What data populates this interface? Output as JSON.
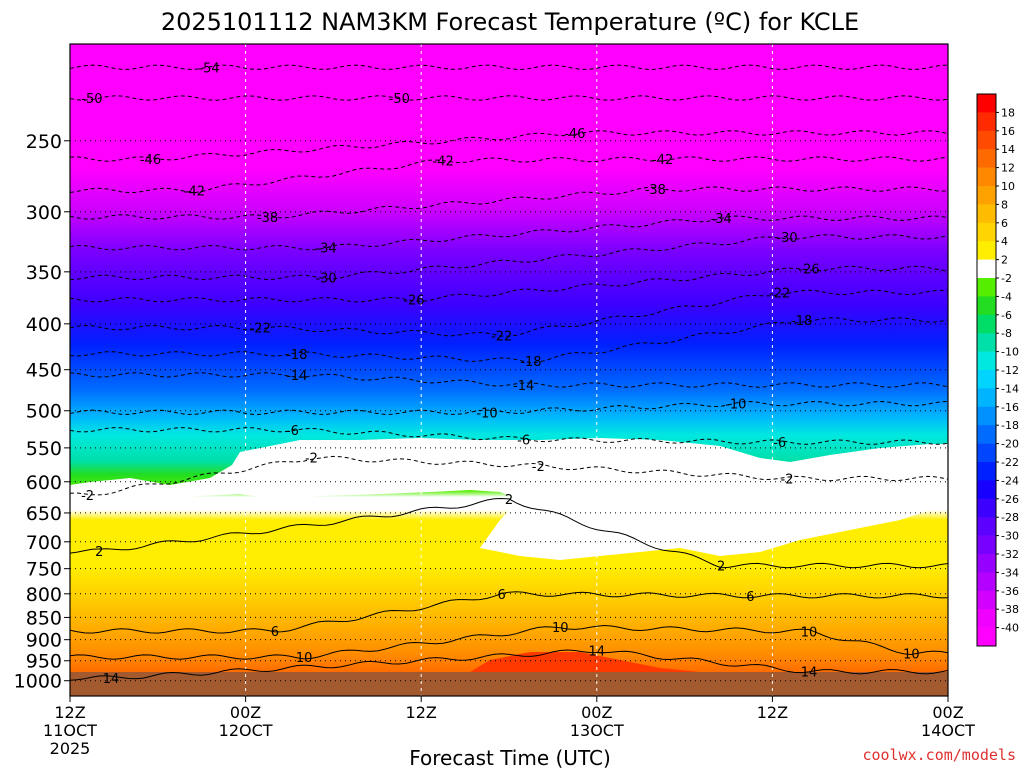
{
  "chart_data": {
    "type": "heatmap",
    "title": "2025101112 NAM3KM Forecast Temperature (ºC) for KCLE",
    "xlabel": "Forecast Time (UTC)",
    "ylabel": "",
    "credit": "coolwx.com/models",
    "y_log_scale": true,
    "y_reversed": true,
    "ylim": [
      1040,
      195
    ],
    "y_ticks": [
      250,
      300,
      350,
      400,
      450,
      500,
      550,
      600,
      650,
      700,
      750,
      800,
      850,
      900,
      950,
      1000
    ],
    "y_tick_labels": [
      "250",
      "300",
      "350",
      "400",
      "450",
      "500",
      "550",
      "600",
      "650",
      "700",
      "750",
      "800",
      "850",
      "900",
      "950",
      "1000"
    ],
    "x_ticks": [
      {
        "top": "12Z",
        "bottom": "11OCT",
        "extra": "2025"
      },
      {
        "top": "00Z",
        "bottom": "12OCT",
        "extra": ""
      },
      {
        "top": "12Z",
        "bottom": "",
        "extra": ""
      },
      {
        "top": "00Z",
        "bottom": "13OCT",
        "extra": ""
      },
      {
        "top": "12Z",
        "bottom": "",
        "extra": ""
      },
      {
        "top": "00Z",
        "bottom": "14OCT",
        "extra": ""
      }
    ],
    "x_hours": [
      0,
      12,
      24,
      36,
      48,
      60
    ],
    "xlim": [
      0,
      60
    ],
    "grid": true,
    "colorbar": {
      "placement": "right",
      "labels": [
        "18",
        "16",
        "14",
        "12",
        "10",
        "8",
        "6",
        "4",
        "2",
        "-2",
        "-4",
        "-6",
        "-8",
        "-10",
        "-12",
        "-14",
        "-16",
        "-18",
        "-20",
        "-22",
        "-24",
        "-26",
        "-28",
        "-30",
        "-32",
        "-34",
        "-36",
        "-38",
        "-40"
      ],
      "colors": [
        "#ff0000",
        "#ff2a00",
        "#ff4a00",
        "#ff6a00",
        "#ff8800",
        "#ffa200",
        "#ffbc00",
        "#ffd400",
        "#ffee00",
        "#ffffff",
        "#55ee00",
        "#22dd22",
        "#00dd66",
        "#00e0a8",
        "#00e8e0",
        "#00d4ff",
        "#00b4ff",
        "#0090ff",
        "#006cff",
        "#0046ff",
        "#0020ff",
        "#1800ff",
        "#3c00ff",
        "#5c00ff",
        "#7800ff",
        "#9600ff",
        "#b400ff",
        "#d200ff",
        "#f000ff",
        "#ff00ff"
      ]
    },
    "contour_labels": [
      {
        "t": "-54",
        "h": 9.5,
        "p": 207
      },
      {
        "t": "-50",
        "h": 1.5,
        "p": 224
      },
      {
        "t": "-50",
        "h": 22.5,
        "p": 224
      },
      {
        "t": "-46",
        "h": 5.5,
        "p": 262
      },
      {
        "t": "-46",
        "h": 34.5,
        "p": 245
      },
      {
        "t": "-42",
        "h": 8.5,
        "p": 284
      },
      {
        "t": "-42",
        "h": 25.5,
        "p": 263
      },
      {
        "t": "-42",
        "h": 40.5,
        "p": 262
      },
      {
        "t": "-38",
        "h": 13.5,
        "p": 304
      },
      {
        "t": "-38",
        "h": 40.0,
        "p": 283
      },
      {
        "t": "-34",
        "h": 17.5,
        "p": 329
      },
      {
        "t": "-34",
        "h": 44.5,
        "p": 305
      },
      {
        "t": "-30",
        "h": 17.5,
        "p": 355
      },
      {
        "t": "-30",
        "h": 49.0,
        "p": 320
      },
      {
        "t": "-26",
        "h": 23.5,
        "p": 376
      },
      {
        "t": "-26",
        "h": 50.5,
        "p": 347
      },
      {
        "t": "-22",
        "h": 13.0,
        "p": 404
      },
      {
        "t": "-22",
        "h": 29.5,
        "p": 412
      },
      {
        "t": "-22",
        "h": 48.5,
        "p": 369
      },
      {
        "t": "-18",
        "h": 15.5,
        "p": 432
      },
      {
        "t": "-18",
        "h": 31.5,
        "p": 440
      },
      {
        "t": "-18",
        "h": 50.0,
        "p": 396
      },
      {
        "t": "-14",
        "h": 15.5,
        "p": 456
      },
      {
        "t": "-14",
        "h": 31.0,
        "p": 468
      },
      {
        "t": "-10",
        "h": 28.5,
        "p": 502
      },
      {
        "t": "-10",
        "h": 45.5,
        "p": 491
      },
      {
        "t": "-6",
        "h": 15.2,
        "p": 525
      },
      {
        "t": "-6",
        "h": 31.0,
        "p": 538
      },
      {
        "t": "-6",
        "h": 48.5,
        "p": 542
      },
      {
        "t": "-2",
        "h": 16.5,
        "p": 564
      },
      {
        "t": "-2",
        "h": 32.0,
        "p": 576
      },
      {
        "t": "-2",
        "h": 49.0,
        "p": 595
      },
      {
        "t": "-2",
        "h": 1.2,
        "p": 621
      },
      {
        "t": "2",
        "h": 2.0,
        "p": 717
      },
      {
        "t": "2",
        "h": 30.0,
        "p": 627
      },
      {
        "t": "2",
        "h": 44.5,
        "p": 744
      },
      {
        "t": "6",
        "h": 29.5,
        "p": 800
      },
      {
        "t": "6",
        "h": 46.5,
        "p": 804
      },
      {
        "t": "6",
        "h": 14.0,
        "p": 880
      },
      {
        "t": "10",
        "h": 33.5,
        "p": 871
      },
      {
        "t": "10",
        "h": 50.5,
        "p": 881
      },
      {
        "t": "10",
        "h": 16.0,
        "p": 941
      },
      {
        "t": "10",
        "h": 57.5,
        "p": 932
      },
      {
        "t": "14",
        "h": 36.0,
        "p": 925
      },
      {
        "t": "14",
        "h": 2.8,
        "p": 993
      },
      {
        "t": "14",
        "h": 50.5,
        "p": 977
      }
    ]
  }
}
